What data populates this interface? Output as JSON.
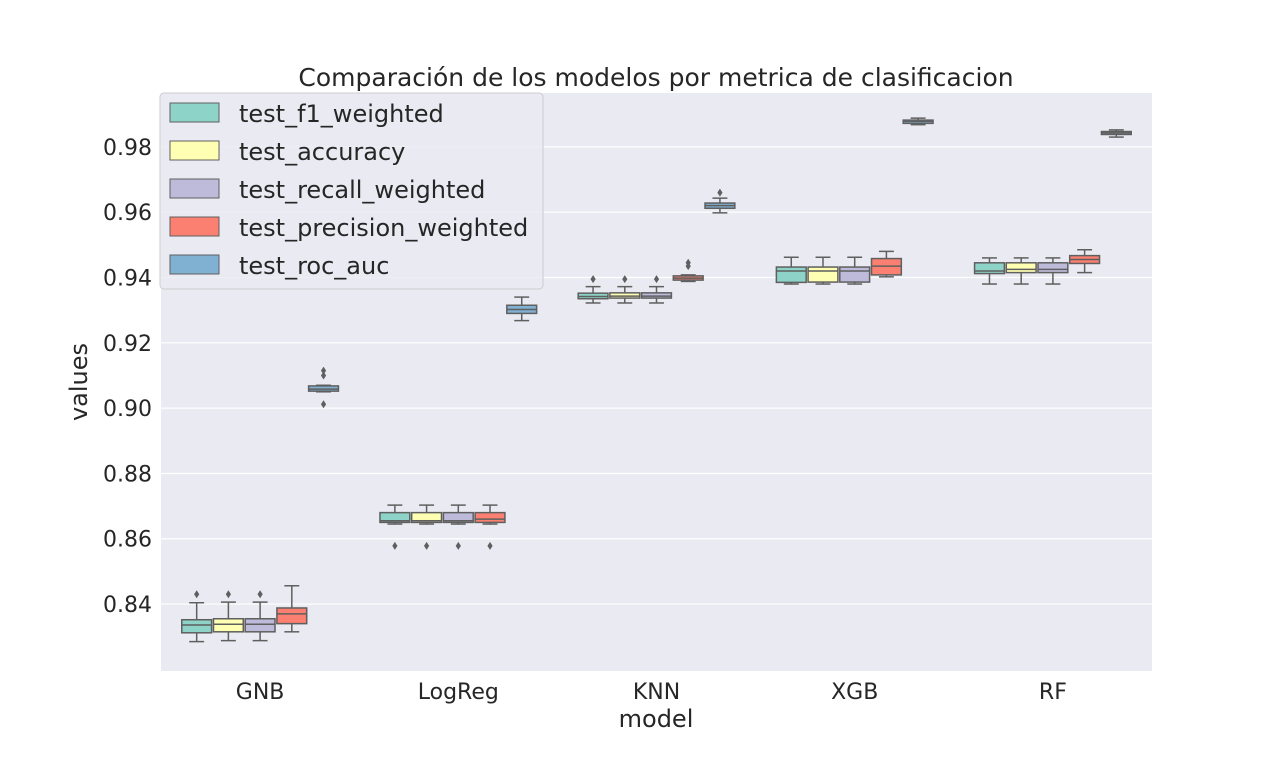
{
  "chart_data": {
    "type": "box",
    "title": "Comparación de los modelos por metrica de clasificacion",
    "xlabel": "model",
    "ylabel": "values",
    "ylim": [
      0.8195,
      0.9965
    ],
    "yticks": [
      0.84,
      0.86,
      0.88,
      0.9,
      0.92,
      0.94,
      0.96,
      0.98
    ],
    "ytick_labels": [
      "0.84",
      "0.86",
      "0.88",
      "0.90",
      "0.92",
      "0.94",
      "0.96",
      "0.98"
    ],
    "categories": [
      "GNB",
      "LogReg",
      "KNN",
      "XGB",
      "RF"
    ],
    "grid": true,
    "legend_position": "top-left",
    "series": [
      {
        "name": "test_f1_weighted",
        "color": "#8dd3c7",
        "boxes": [
          {
            "whislo": 0.8285,
            "q1": 0.8312,
            "med": 0.8336,
            "q3": 0.8352,
            "whishi": 0.8404,
            "fliers": [
              0.843
            ]
          },
          {
            "whislo": 0.8645,
            "q1": 0.865,
            "med": 0.8655,
            "q3": 0.868,
            "whishi": 0.8703,
            "fliers": [
              0.8578
            ]
          },
          {
            "whislo": 0.9322,
            "q1": 0.9335,
            "med": 0.9342,
            "q3": 0.9352,
            "whishi": 0.9372,
            "fliers": [
              0.9395
            ]
          },
          {
            "whislo": 0.938,
            "q1": 0.9385,
            "med": 0.942,
            "q3": 0.9432,
            "whishi": 0.9462,
            "fliers": []
          },
          {
            "whislo": 0.938,
            "q1": 0.9412,
            "med": 0.942,
            "q3": 0.9445,
            "whishi": 0.946,
            "fliers": []
          }
        ]
      },
      {
        "name": "test_accuracy",
        "color": "#ffffb3",
        "boxes": [
          {
            "whislo": 0.8288,
            "q1": 0.8315,
            "med": 0.8338,
            "q3": 0.8355,
            "whishi": 0.8406,
            "fliers": [
              0.843
            ]
          },
          {
            "whislo": 0.8645,
            "q1": 0.865,
            "med": 0.8655,
            "q3": 0.868,
            "whishi": 0.8703,
            "fliers": [
              0.8578
            ]
          },
          {
            "whislo": 0.9322,
            "q1": 0.9337,
            "med": 0.9343,
            "q3": 0.9353,
            "whishi": 0.9372,
            "fliers": [
              0.9395
            ]
          },
          {
            "whislo": 0.938,
            "q1": 0.9386,
            "med": 0.942,
            "q3": 0.9432,
            "whishi": 0.9462,
            "fliers": []
          },
          {
            "whislo": 0.938,
            "q1": 0.9415,
            "med": 0.9425,
            "q3": 0.9445,
            "whishi": 0.946,
            "fliers": []
          }
        ]
      },
      {
        "name": "test_recall_weighted",
        "color": "#bebada",
        "boxes": [
          {
            "whislo": 0.8288,
            "q1": 0.8315,
            "med": 0.8338,
            "q3": 0.8355,
            "whishi": 0.8406,
            "fliers": [
              0.843
            ]
          },
          {
            "whislo": 0.8645,
            "q1": 0.865,
            "med": 0.8655,
            "q3": 0.868,
            "whishi": 0.8703,
            "fliers": [
              0.8578
            ]
          },
          {
            "whislo": 0.9322,
            "q1": 0.9337,
            "med": 0.9343,
            "q3": 0.9353,
            "whishi": 0.9372,
            "fliers": [
              0.9395
            ]
          },
          {
            "whislo": 0.938,
            "q1": 0.9386,
            "med": 0.942,
            "q3": 0.9432,
            "whishi": 0.9462,
            "fliers": []
          },
          {
            "whislo": 0.938,
            "q1": 0.9415,
            "med": 0.9425,
            "q3": 0.9445,
            "whishi": 0.946,
            "fliers": []
          }
        ]
      },
      {
        "name": "test_precision_weighted",
        "color": "#fb8072",
        "boxes": [
          {
            "whislo": 0.8315,
            "q1": 0.834,
            "med": 0.837,
            "q3": 0.8388,
            "whishi": 0.8456,
            "fliers": []
          },
          {
            "whislo": 0.8645,
            "q1": 0.865,
            "med": 0.866,
            "q3": 0.868,
            "whishi": 0.8703,
            "fliers": [
              0.8578
            ]
          },
          {
            "whislo": 0.9388,
            "q1": 0.9392,
            "med": 0.9398,
            "q3": 0.9405,
            "whishi": 0.9408,
            "fliers": [
              0.9435,
              0.9445
            ]
          },
          {
            "whislo": 0.9402,
            "q1": 0.9408,
            "med": 0.9435,
            "q3": 0.9458,
            "whishi": 0.948,
            "fliers": []
          },
          {
            "whislo": 0.9415,
            "q1": 0.9443,
            "med": 0.9455,
            "q3": 0.9467,
            "whishi": 0.9485,
            "fliers": []
          }
        ]
      },
      {
        "name": "test_roc_auc",
        "color": "#80b1d3",
        "boxes": [
          {
            "whislo": 0.905,
            "q1": 0.9052,
            "med": 0.9058,
            "q3": 0.9068,
            "whishi": 0.907,
            "fliers": [
              0.9012,
              0.91,
              0.9115
            ]
          },
          {
            "whislo": 0.9268,
            "q1": 0.929,
            "med": 0.9302,
            "q3": 0.9315,
            "whishi": 0.934,
            "fliers": []
          },
          {
            "whislo": 0.9598,
            "q1": 0.9612,
            "med": 0.962,
            "q3": 0.9628,
            "whishi": 0.9643,
            "fliers": [
              0.966
            ]
          },
          {
            "whislo": 0.9868,
            "q1": 0.9872,
            "med": 0.9878,
            "q3": 0.9882,
            "whishi": 0.9888,
            "fliers": []
          },
          {
            "whislo": 0.983,
            "q1": 0.9838,
            "med": 0.9843,
            "q3": 0.9847,
            "whishi": 0.9852,
            "fliers": []
          }
        ]
      }
    ]
  }
}
